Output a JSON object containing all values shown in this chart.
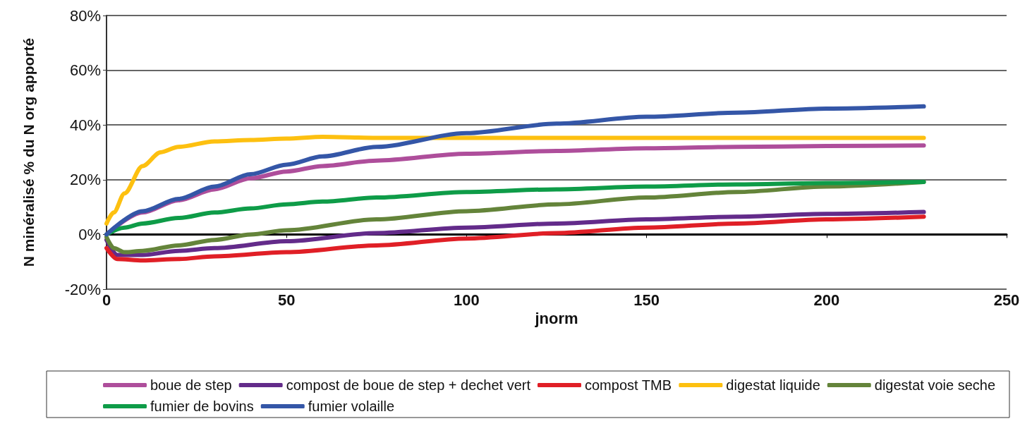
{
  "chart_data": {
    "type": "line",
    "xlabel": "jnorm",
    "ylabel": "N minéralisé % du N org apporté",
    "xlim": [
      0,
      250
    ],
    "xticks": [
      0,
      50,
      100,
      150,
      200,
      250
    ],
    "ylim": [
      -20,
      80
    ],
    "yticks": [
      {
        "value": -20,
        "label": "-20%"
      },
      {
        "value": 0,
        "label": "0%"
      },
      {
        "value": 20,
        "label": "20%"
      },
      {
        "value": 40,
        "label": "40%"
      },
      {
        "value": 60,
        "label": "60%"
      },
      {
        "value": 80,
        "label": "80%"
      }
    ],
    "grid": "y",
    "legend": "bottom",
    "marker": "none",
    "line_style": "solid",
    "series": [
      {
        "name": "boue de step",
        "color": "#ae4e9b",
        "x": [
          0,
          10,
          20,
          30,
          40,
          50,
          60,
          75,
          100,
          125,
          150,
          175,
          200,
          227
        ],
        "values": [
          0,
          8,
          12.5,
          16.5,
          20.5,
          23,
          25,
          27,
          29.5,
          30.5,
          31.5,
          32,
          32.3,
          32.5
        ]
      },
      {
        "name": "compost de boue de step + dechet vert",
        "color": "#632b8a",
        "x": [
          0,
          3,
          10,
          20,
          30,
          50,
          75,
          100,
          125,
          150,
          175,
          200,
          227
        ],
        "values": [
          -2,
          -7.5,
          -7.5,
          -6,
          -5,
          -2.5,
          0.5,
          2.5,
          4,
          5.5,
          6.5,
          7.5,
          8.2
        ]
      },
      {
        "name": "compost TMB",
        "color": "#e01f26",
        "x": [
          0,
          3,
          10,
          20,
          30,
          50,
          75,
          100,
          125,
          150,
          175,
          200,
          227
        ],
        "values": [
          -5,
          -9,
          -9.5,
          -9,
          -8,
          -6.5,
          -4,
          -1.5,
          0.5,
          2.5,
          4,
          5.5,
          6.5
        ]
      },
      {
        "name": "digestat liquide",
        "color": "#fdc010",
        "x": [
          0,
          2,
          5,
          10,
          15,
          20,
          30,
          40,
          50,
          60,
          75,
          100,
          150,
          227
        ],
        "values": [
          4,
          8,
          15,
          25,
          30,
          32,
          34,
          34.5,
          35,
          35.7,
          35.3,
          35.3,
          35.3,
          35.3
        ]
      },
      {
        "name": "digestat voie seche",
        "color": "#64843a",
        "x": [
          0,
          2,
          5,
          10,
          20,
          30,
          40,
          50,
          75,
          100,
          125,
          150,
          175,
          200,
          227
        ],
        "values": [
          -1,
          -5,
          -6.5,
          -6,
          -4,
          -2,
          0,
          1.5,
          5.5,
          8.5,
          11,
          13.5,
          15.5,
          17.5,
          19.2
        ]
      },
      {
        "name": "fumier de bovins",
        "color": "#0e9c48",
        "x": [
          0,
          5,
          10,
          20,
          30,
          40,
          50,
          60,
          75,
          100,
          125,
          150,
          175,
          200,
          227
        ],
        "values": [
          0,
          2.5,
          4,
          6,
          8,
          9.5,
          11,
          12,
          13.5,
          15.5,
          16.5,
          17.5,
          18.3,
          18.8,
          19.2
        ]
      },
      {
        "name": "fumier volaille",
        "color": "#3456a7",
        "x": [
          0,
          10,
          20,
          30,
          40,
          50,
          60,
          75,
          100,
          125,
          150,
          175,
          200,
          227
        ],
        "values": [
          0,
          8.5,
          13,
          17.5,
          22,
          25.5,
          28.5,
          32,
          37,
          40.5,
          43,
          44.5,
          46,
          46.8
        ]
      }
    ]
  }
}
